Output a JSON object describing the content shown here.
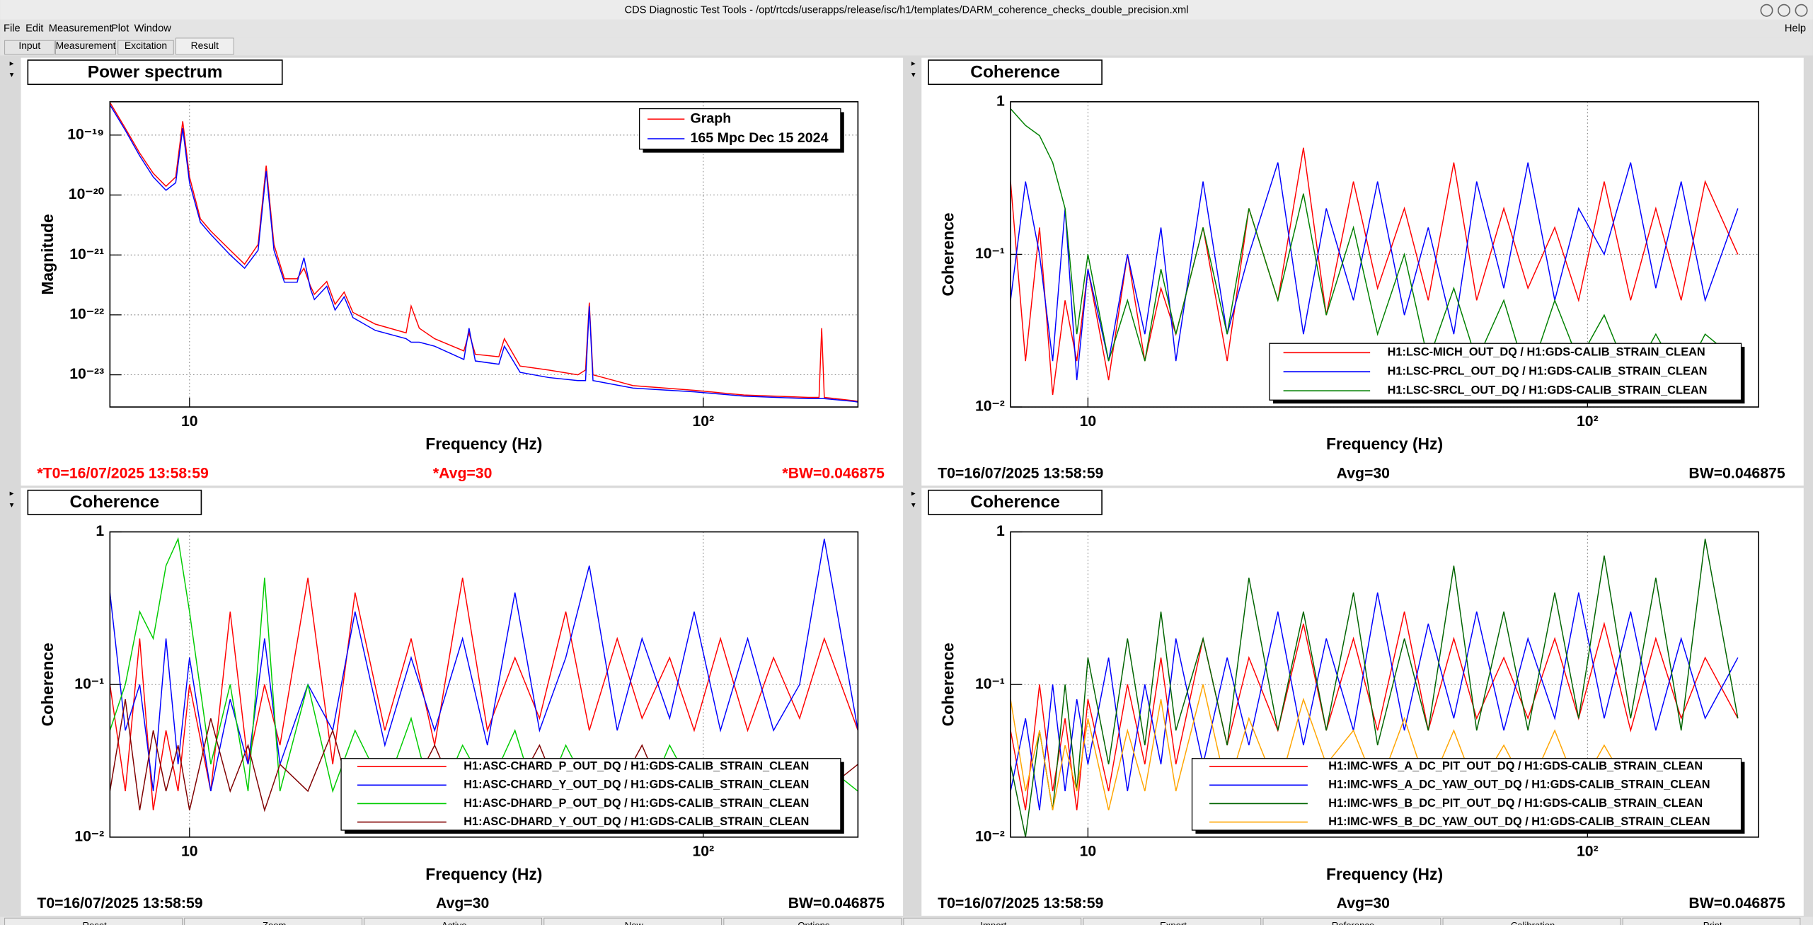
{
  "window": {
    "title": "CDS Diagnostic Test Tools - /opt/rtcds/userapps/release/isc/h1/templates/DARM_coherence_checks_double_precision.xml",
    "menu": [
      "File",
      "Edit",
      "Measurement",
      "Plot",
      "Window"
    ],
    "help": "Help",
    "tabs": [
      "Input",
      "Measurement",
      "Excitation",
      "Result"
    ],
    "buttons": [
      "Reset",
      "Zoom",
      "Active",
      "New",
      "Options",
      "Import",
      "Export",
      "Reference",
      "Calibration",
      "Print"
    ]
  },
  "chart_data": [
    {
      "type": "line",
      "title": "Power spectrum",
      "x_label": "Frequency (Hz)",
      "y_label": "Magnitude",
      "log_x": true,
      "log_y": true,
      "grid": true,
      "legend": "upper right",
      "xlim": [
        7,
        200
      ],
      "ylim": [
        2.9e-24,
        3.6e-19
      ],
      "xticks": [
        10,
        {
          "value": 100,
          "label": "10²"
        }
      ],
      "yticks": [
        {
          "value": 1e-19,
          "label": "10⁻¹⁹"
        },
        {
          "value": 1e-20,
          "label": "10⁻²⁰"
        },
        {
          "value": 1e-21,
          "label": "10⁻²¹"
        },
        {
          "value": 1e-22,
          "label": "10⁻²²"
        },
        {
          "value": 1e-23,
          "label": "10⁻²³"
        }
      ],
      "x": [
        7,
        7.5,
        8,
        8.5,
        9,
        9.4,
        9.7,
        10,
        10.5,
        11,
        12,
        12.8,
        13.6,
        14.1,
        14.6,
        15.3,
        16.2,
        16.7,
        17.2,
        17.5,
        18.5,
        19.2,
        20,
        20.8,
        23,
        26.4,
        27,
        28,
        30,
        34.2,
        35,
        36,
        40,
        41,
        44,
        50,
        57,
        59,
        60,
        61,
        73,
        96,
        120,
        160,
        168,
        170,
        172,
        196,
        200
      ],
      "series": [
        {
          "name": "Graph",
          "color": "#ff0000",
          "values": [
            3.5e-19,
            1.3e-19,
            5e-20,
            2.3e-20,
            1.4e-20,
            2e-20,
            1.7e-19,
            2e-20,
            4e-21,
            2.5e-21,
            1.2e-21,
            7e-22,
            1.5e-21,
            3.1e-20,
            1.5e-21,
            4e-22,
            4e-22,
            6e-22,
            3e-22,
            2.2e-22,
            3.6e-22,
            1.5e-22,
            2.4e-22,
            1.1e-22,
            7e-23,
            5e-23,
            1.4e-22,
            6e-23,
            4e-23,
            2.5e-23,
            5e-23,
            2.2e-23,
            2e-23,
            4e-23,
            1.4e-23,
            1.2e-23,
            1e-23,
            1.2e-23,
            1.6e-22,
            1e-23,
            6.6e-24,
            5.5e-24,
            4.6e-24,
            4.2e-24,
            4.2e-24,
            6e-23,
            4.2e-24,
            3.7e-24,
            3.6e-24
          ]
        },
        {
          "name": "165 Mpc Dec 15 2024",
          "color": "#0000ff",
          "values": [
            3.2e-19,
            1.2e-19,
            4.5e-20,
            2e-20,
            1.2e-20,
            1.6e-20,
            1.3e-19,
            1.6e-20,
            3.5e-21,
            2.2e-21,
            1e-21,
            6e-22,
            1.2e-21,
            2.5e-20,
            1.2e-21,
            3.5e-22,
            3.5e-22,
            9e-22,
            2.7e-22,
            1.8e-22,
            3e-22,
            1.2e-22,
            2e-22,
            9e-23,
            5.5e-23,
            4e-23,
            3.5e-23,
            3.5e-23,
            3e-23,
            1.8e-23,
            6e-23,
            1.7e-23,
            1.5e-23,
            3e-23,
            1.1e-23,
            9e-24,
            8e-24,
            8e-24,
            1.4e-22,
            8e-24,
            6e-24,
            5.2e-24,
            4.4e-24,
            4e-24,
            4e-24,
            4e-24,
            4e-24,
            3.6e-24,
            3.5e-24
          ]
        }
      ],
      "footer": {
        "t0": "*T0=16/07/2025 13:58:59",
        "avg": "*Avg=30",
        "bw": "*BW=0.046875",
        "color": "#ff0000"
      }
    },
    {
      "type": "line",
      "title": "Coherence",
      "x_label": "Frequency (Hz)",
      "y_label": "Coherence",
      "log_x": true,
      "log_y": true,
      "grid": true,
      "legend": "lower right",
      "xlim": [
        7,
        220
      ],
      "ylim": [
        0.01,
        1
      ],
      "xticks": [
        10,
        {
          "value": 100,
          "label": "10²"
        }
      ],
      "yticks": [
        1,
        {
          "value": 0.1,
          "label": "10⁻¹"
        },
        {
          "value": 0.01,
          "label": "10⁻²"
        }
      ],
      "x": [
        7,
        7.5,
        8,
        8.5,
        9,
        9.5,
        10,
        11,
        12,
        13,
        14,
        15,
        17,
        19,
        21,
        24,
        27,
        30,
        34,
        38,
        43,
        48,
        54,
        60,
        68,
        76,
        86,
        96,
        108,
        122,
        137,
        154,
        172,
        200
      ],
      "series": [
        {
          "name": "H1:LSC-MICH_OUT_DQ / H1:GDS-CALIB_STRAIN_CLEAN",
          "color": "#ff0000",
          "values": [
            0.3,
            0.02,
            0.15,
            0.012,
            0.05,
            0.02,
            0.08,
            0.015,
            0.1,
            0.02,
            0.06,
            0.03,
            0.15,
            0.02,
            0.2,
            0.05,
            0.5,
            0.04,
            0.3,
            0.06,
            0.2,
            0.05,
            0.4,
            0.05,
            0.2,
            0.06,
            0.15,
            0.05,
            0.3,
            0.05,
            0.2,
            0.05,
            0.3,
            0.1
          ]
        },
        {
          "name": "H1:LSC-PRCL_OUT_DQ / H1:GDS-CALIB_STRAIN_CLEAN",
          "color": "#0000ff",
          "values": [
            0.05,
            0.3,
            0.1,
            0.02,
            0.2,
            0.015,
            0.08,
            0.02,
            0.1,
            0.03,
            0.15,
            0.02,
            0.3,
            0.03,
            0.1,
            0.4,
            0.03,
            0.2,
            0.05,
            0.3,
            0.04,
            0.15,
            0.03,
            0.3,
            0.06,
            0.4,
            0.05,
            0.2,
            0.1,
            0.4,
            0.06,
            0.3,
            0.05,
            0.2
          ]
        },
        {
          "name": "H1:LSC-SRCL_OUT_DQ / H1:GDS-CALIB_STRAIN_CLEAN",
          "color": "#008000",
          "values": [
            0.9,
            0.7,
            0.6,
            0.4,
            0.2,
            0.03,
            0.1,
            0.02,
            0.05,
            0.02,
            0.08,
            0.03,
            0.15,
            0.03,
            0.2,
            0.05,
            0.25,
            0.04,
            0.15,
            0.03,
            0.1,
            0.02,
            0.06,
            0.02,
            0.05,
            0.015,
            0.05,
            0.02,
            0.04,
            0.015,
            0.03,
            0.015,
            0.03,
            0.02
          ]
        }
      ],
      "footer": {
        "t0": "T0=16/07/2025 13:58:59",
        "avg": "Avg=30",
        "bw": "BW=0.046875",
        "color": "#000000"
      }
    },
    {
      "type": "line",
      "title": "Coherence",
      "x_label": "Frequency (Hz)",
      "y_label": "Coherence",
      "log_x": true,
      "log_y": true,
      "grid": true,
      "legend": "lower right",
      "xlim": [
        7,
        200
      ],
      "ylim": [
        0.01,
        1
      ],
      "xticks": [
        10,
        {
          "value": 100,
          "label": "10²"
        }
      ],
      "yticks": [
        1,
        {
          "value": 0.1,
          "label": "10⁻¹"
        },
        {
          "value": 0.01,
          "label": "10⁻²"
        }
      ],
      "x": [
        7,
        7.5,
        8,
        8.5,
        9,
        9.5,
        10,
        11,
        12,
        13,
        14,
        15,
        17,
        19,
        21,
        24,
        27,
        30,
        34,
        38,
        43,
        48,
        54,
        60,
        68,
        76,
        86,
        96,
        108,
        122,
        137,
        154,
        172,
        200
      ],
      "series": [
        {
          "name": "H1:ASC-CHARD_P_OUT_DQ / H1:GDS-CALIB_STRAIN_CLEAN",
          "color": "#ff0000",
          "values": [
            0.1,
            0.02,
            0.2,
            0.015,
            0.05,
            0.02,
            0.1,
            0.02,
            0.3,
            0.03,
            0.1,
            0.04,
            0.5,
            0.03,
            0.4,
            0.05,
            0.2,
            0.04,
            0.5,
            0.05,
            0.15,
            0.06,
            0.3,
            0.05,
            0.2,
            0.06,
            0.15,
            0.05,
            0.2,
            0.05,
            0.15,
            0.06,
            0.2,
            0.05
          ]
        },
        {
          "name": "H1:ASC-CHARD_Y_OUT_DQ / H1:GDS-CALIB_STRAIN_CLEAN",
          "color": "#0000ff",
          "values": [
            0.4,
            0.05,
            0.1,
            0.02,
            0.2,
            0.03,
            0.15,
            0.02,
            0.08,
            0.03,
            0.2,
            0.03,
            0.1,
            0.05,
            0.3,
            0.04,
            0.15,
            0.05,
            0.2,
            0.04,
            0.4,
            0.05,
            0.15,
            0.6,
            0.05,
            0.2,
            0.06,
            0.3,
            0.05,
            0.2,
            0.05,
            0.1,
            0.9,
            0.05
          ]
        },
        {
          "name": "H1:ASC-DHARD_P_OUT_DQ / H1:GDS-CALIB_STRAIN_CLEAN",
          "color": "#00cc00",
          "values": [
            0.05,
            0.1,
            0.3,
            0.2,
            0.6,
            0.9,
            0.3,
            0.03,
            0.1,
            0.02,
            0.5,
            0.02,
            0.1,
            0.02,
            0.05,
            0.02,
            0.06,
            0.015,
            0.04,
            0.02,
            0.05,
            0.015,
            0.04,
            0.02,
            0.03,
            0.015,
            0.04,
            0.02,
            0.03,
            0.015,
            0.03,
            0.015,
            0.03,
            0.02
          ]
        },
        {
          "name": "H1:ASC-DHARD_Y_OUT_DQ / H1:GDS-CALIB_STRAIN_CLEAN",
          "color": "#800000",
          "values": [
            0.02,
            0.08,
            0.015,
            0.05,
            0.02,
            0.04,
            0.015,
            0.06,
            0.02,
            0.04,
            0.015,
            0.03,
            0.02,
            0.05,
            0.015,
            0.03,
            0.02,
            0.04,
            0.015,
            0.03,
            0.02,
            0.04,
            0.015,
            0.03,
            0.02,
            0.04,
            0.015,
            0.03,
            0.02,
            0.03,
            0.015,
            0.03,
            0.02,
            0.03
          ]
        }
      ],
      "footer": {
        "t0": "T0=16/07/2025 13:58:59",
        "avg": "Avg=30",
        "bw": "BW=0.046875",
        "color": "#000000"
      }
    },
    {
      "type": "line",
      "title": "Coherence",
      "x_label": "Frequency (Hz)",
      "y_label": "Coherence",
      "log_x": true,
      "log_y": true,
      "grid": true,
      "legend": "lower right",
      "xlim": [
        7,
        220
      ],
      "ylim": [
        0.01,
        1
      ],
      "xticks": [
        10,
        {
          "value": 100,
          "label": "10²"
        }
      ],
      "yticks": [
        1,
        {
          "value": 0.1,
          "label": "10⁻¹"
        },
        {
          "value": 0.01,
          "label": "10⁻²"
        }
      ],
      "x": [
        7,
        7.5,
        8,
        8.5,
        9,
        9.5,
        10,
        11,
        12,
        13,
        14,
        15,
        17,
        19,
        21,
        24,
        27,
        30,
        34,
        38,
        43,
        48,
        54,
        60,
        68,
        76,
        86,
        96,
        108,
        122,
        137,
        154,
        172,
        200
      ],
      "series": [
        {
          "name": "H1:IMC-WFS_A_DC_PIT_OUT_DQ / H1:GDS-CALIB_STRAIN_CLEAN",
          "color": "#ff0000",
          "values": [
            0.05,
            0.015,
            0.1,
            0.02,
            0.06,
            0.015,
            0.08,
            0.02,
            0.1,
            0.03,
            0.15,
            0.03,
            0.2,
            0.04,
            0.15,
            0.05,
            0.25,
            0.05,
            0.2,
            0.05,
            0.3,
            0.05,
            0.2,
            0.06,
            0.15,
            0.06,
            0.2,
            0.06,
            0.25,
            0.05,
            0.2,
            0.06,
            0.15,
            0.06
          ]
        },
        {
          "name": "H1:IMC-WFS_A_DC_YAW_OUT_DQ / H1:GDS-CALIB_STRAIN_CLEAN",
          "color": "#0000ff",
          "values": [
            0.02,
            0.06,
            0.015,
            0.1,
            0.02,
            0.08,
            0.03,
            0.15,
            0.02,
            0.1,
            0.03,
            0.2,
            0.03,
            0.15,
            0.04,
            0.3,
            0.04,
            0.2,
            0.05,
            0.4,
            0.05,
            0.25,
            0.06,
            0.3,
            0.05,
            0.2,
            0.06,
            0.4,
            0.06,
            0.3,
            0.05,
            0.2,
            0.06,
            0.15
          ]
        },
        {
          "name": "H1:IMC-WFS_B_DC_PIT_OUT_DQ / H1:GDS-CALIB_STRAIN_CLEAN",
          "color": "#006400",
          "values": [
            0.03,
            0.01,
            0.05,
            0.015,
            0.1,
            0.02,
            0.15,
            0.03,
            0.2,
            0.04,
            0.3,
            0.05,
            0.2,
            0.04,
            0.5,
            0.05,
            0.3,
            0.05,
            0.4,
            0.04,
            0.2,
            0.05,
            0.6,
            0.05,
            0.3,
            0.05,
            0.4,
            0.06,
            0.7,
            0.06,
            0.5,
            0.05,
            0.9,
            0.06
          ]
        },
        {
          "name": "H1:IMC-WFS_B_DC_YAW_OUT_DQ / H1:GDS-CALIB_STRAIN_CLEAN",
          "color": "#ffa500",
          "values": [
            0.08,
            0.02,
            0.05,
            0.015,
            0.04,
            0.02,
            0.06,
            0.015,
            0.05,
            0.02,
            0.08,
            0.02,
            0.1,
            0.02,
            0.06,
            0.02,
            0.08,
            0.03,
            0.05,
            0.02,
            0.06,
            0.02,
            0.05,
            0.02,
            0.04,
            0.02,
            0.05,
            0.02,
            0.04,
            0.02,
            0.03,
            0.015,
            0.03,
            0.02
          ]
        }
      ],
      "footer": {
        "t0": "T0=16/07/2025 13:58:59",
        "avg": "Avg=30",
        "bw": "BW=0.046875",
        "color": "#000000"
      }
    }
  ]
}
